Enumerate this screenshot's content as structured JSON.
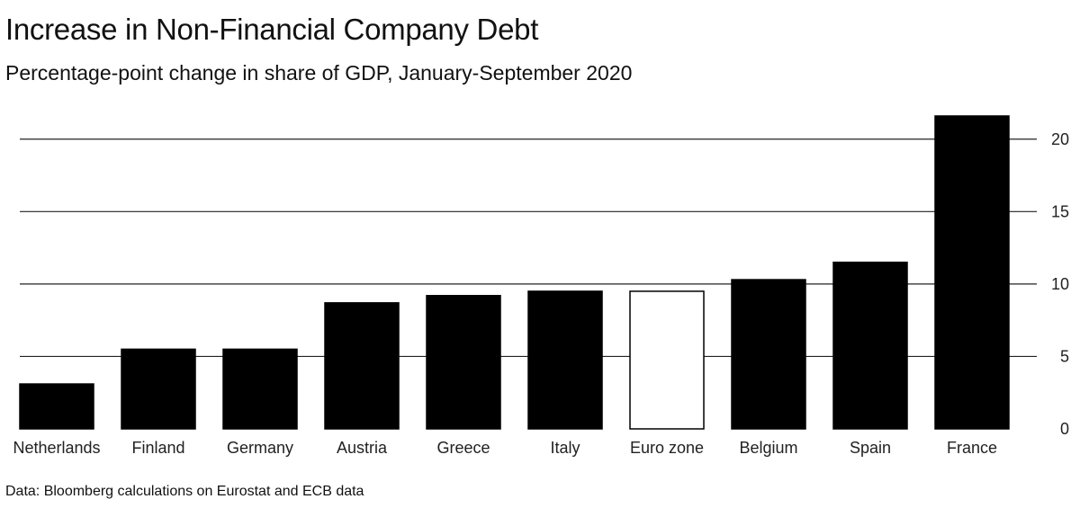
{
  "title": "Increase in Non-Financial Company Debt",
  "subtitle": "Percentage-point change in share of GDP, January-September 2020",
  "source": "Data: Bloomberg calculations on Eurostat and ECB data",
  "chart_data": {
    "type": "bar",
    "title": "Increase in Non-Financial Company Debt",
    "subtitle": "Percentage-point change in share of GDP, January-September 2020",
    "categories": [
      "Netherlands",
      "Finland",
      "Germany",
      "Austria",
      "Greece",
      "Italy",
      "Euro zone",
      "Belgium",
      "Spain",
      "France"
    ],
    "values": [
      3.1,
      5.5,
      5.5,
      8.7,
      9.2,
      9.5,
      9.5,
      10.3,
      11.5,
      21.6
    ],
    "highlight": [
      "Euro zone"
    ],
    "bar_color": "#000000",
    "highlight_color": "#ffffff",
    "yticks": [
      0,
      5,
      10,
      15,
      20
    ],
    "ylim": [
      0,
      21.6
    ],
    "y_axis_position": "right",
    "grid": true,
    "xlabel": "",
    "ylabel": ""
  }
}
